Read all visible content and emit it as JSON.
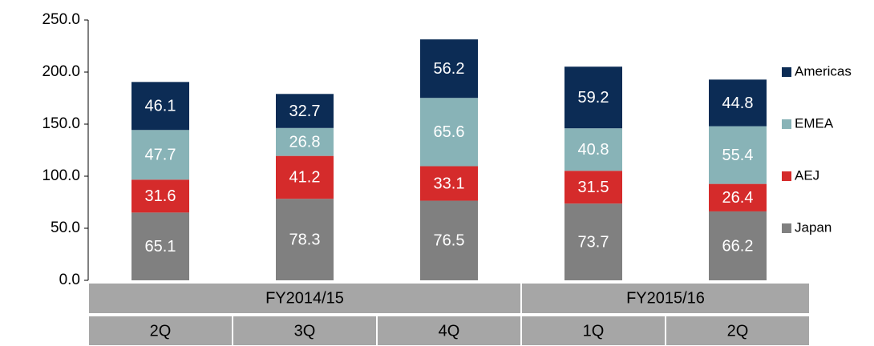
{
  "chart_data": {
    "type": "stacked_bar",
    "groups": [
      {
        "label": "FY2014/15",
        "categories": [
          "2Q",
          "3Q",
          "4Q"
        ]
      },
      {
        "label": "FY2015/16",
        "categories": [
          "1Q",
          "2Q"
        ]
      }
    ],
    "series": [
      {
        "name": "Japan",
        "color": "#808080",
        "values": [
          65.1,
          78.3,
          76.5,
          73.7,
          66.2
        ]
      },
      {
        "name": "AEJ",
        "color": "#d52b2b",
        "values": [
          31.6,
          41.2,
          33.1,
          31.5,
          26.4
        ]
      },
      {
        "name": "EMEA",
        "color": "#88b3b7",
        "values": [
          47.7,
          26.8,
          65.6,
          40.8,
          55.4
        ]
      },
      {
        "name": "Americas",
        "color": "#0c2c55",
        "values": [
          46.1,
          32.7,
          56.2,
          59.2,
          44.8
        ]
      }
    ],
    "ylim": [
      0,
      250
    ],
    "yticks": [
      {
        "value": 0,
        "label": "0.0"
      },
      {
        "value": 50,
        "label": "50.0"
      },
      {
        "value": 100,
        "label": "100.0"
      },
      {
        "value": 150,
        "label": "150.0"
      },
      {
        "value": 200,
        "label": "200.0"
      },
      {
        "value": 250,
        "label": "250.0"
      }
    ],
    "legend": "right"
  }
}
